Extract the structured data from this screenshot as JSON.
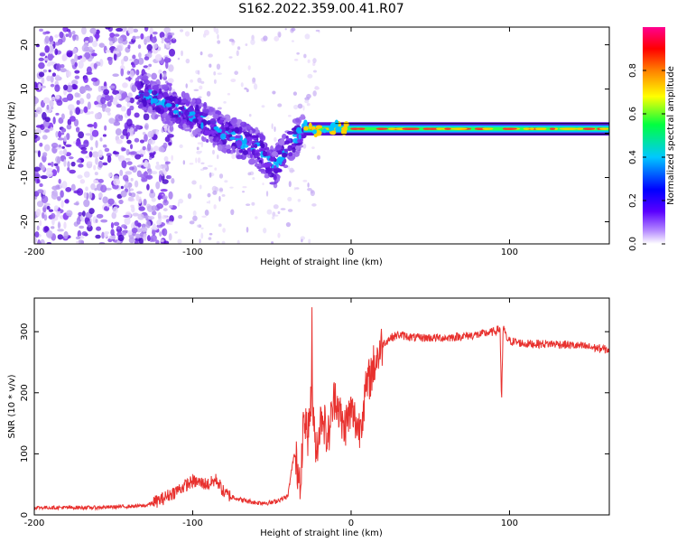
{
  "title": "S162.2022.359.00.41.R07",
  "colors": {
    "snr_line": "#e8312e",
    "axis": "#000000",
    "spectro_light": "#d7c4f5",
    "spectro_dark": "#6a1fe0"
  },
  "chart_data": [
    {
      "type": "heatmap",
      "xlabel": "Height of straight line (km)",
      "ylabel": "Frequency (Hz)",
      "xlim": [
        -200,
        163
      ],
      "ylim": [
        -25,
        24
      ],
      "xticks": [
        -200,
        -100,
        0,
        100
      ],
      "yticks": [
        -20,
        -10,
        0,
        10,
        20
      ],
      "ridge": {
        "description_points_x": [
          -135,
          -120,
          -100,
          -80,
          -60,
          -48,
          -40,
          -30,
          0,
          50,
          100,
          163
        ],
        "description_points_y": [
          10,
          7,
          4,
          0,
          -3,
          -8,
          -3,
          1,
          1,
          1,
          1,
          1
        ]
      },
      "colorbar": {
        "label": "Normalized spectral amplitude",
        "range": [
          0,
          1
        ],
        "ticks": [
          0.0,
          0.2,
          0.4,
          0.6,
          0.8
        ],
        "tick_labels": [
          "0.0",
          "0.2",
          "0.4",
          "0.6",
          "0.8"
        ],
        "stops": [
          "#ffffff",
          "#6a00ff",
          "#0000ff",
          "#00c8ff",
          "#00ff40",
          "#ffff00",
          "#ff8000",
          "#ff0000",
          "#ff00aa"
        ]
      }
    },
    {
      "type": "line",
      "xlabel": "Height of straight line (km)",
      "ylabel": "SNR (10 * v/v)",
      "xlim": [
        -200,
        163
      ],
      "ylim": [
        0,
        355
      ],
      "xticks": [
        -200,
        -100,
        0,
        100
      ],
      "yticks": [
        0,
        100,
        200,
        300
      ],
      "series": [
        {
          "name": "SNR",
          "x": [
            -200,
            -160,
            -130,
            -120,
            -110,
            -100,
            -90,
            -85,
            -80,
            -75,
            -70,
            -60,
            -50,
            -40,
            -36,
            -32,
            -30,
            -27,
            -25,
            -22,
            -18,
            -15,
            -10,
            -5,
            0,
            5,
            10,
            15,
            20,
            25,
            30,
            40,
            60,
            80,
            90,
            94,
            95,
            96,
            98,
            100,
            110,
            130,
            150,
            163
          ],
          "y": [
            12,
            12,
            15,
            25,
            40,
            55,
            50,
            58,
            35,
            30,
            25,
            20,
            20,
            30,
            100,
            60,
            160,
            130,
            200,
            110,
            170,
            120,
            200,
            140,
            170,
            140,
            210,
            250,
            280,
            290,
            295,
            290,
            290,
            295,
            300,
            305,
            185,
            310,
            290,
            285,
            280,
            280,
            275,
            270
          ]
        }
      ]
    }
  ]
}
